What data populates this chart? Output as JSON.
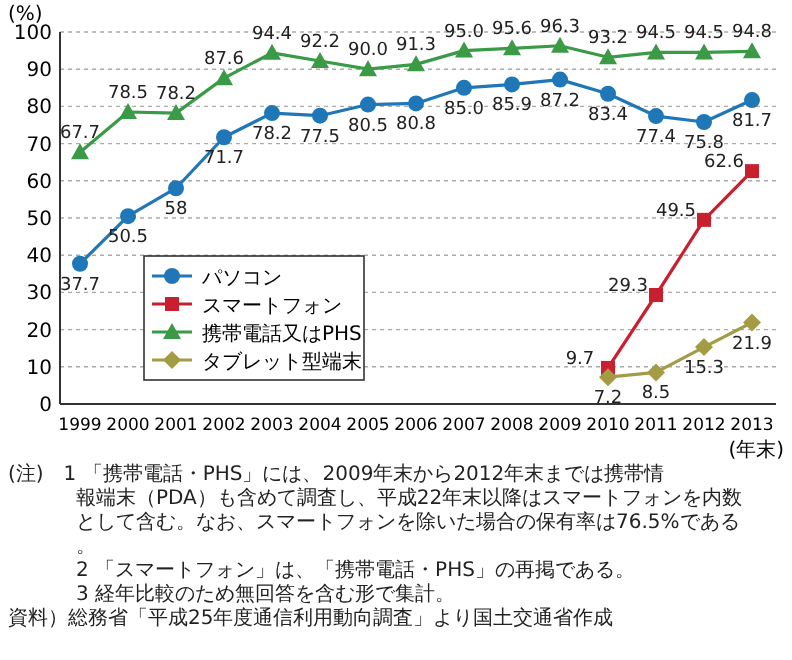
{
  "chart_data": {
    "type": "line",
    "ylabel": "(%)",
    "xlabel": "(年末)",
    "categories": [
      "1999",
      "2000",
      "2001",
      "2002",
      "2003",
      "2004",
      "2005",
      "2006",
      "2007",
      "2008",
      "2009",
      "2010",
      "2011",
      "2012",
      "2013"
    ],
    "ylim": [
      0,
      100
    ],
    "yticks": [
      0,
      10,
      20,
      30,
      40,
      50,
      60,
      70,
      80,
      90,
      100
    ],
    "grid": "y",
    "legend": "left",
    "series": [
      {
        "name": "パソコン",
        "color": "#1f77b8",
        "marker": "circle",
        "values": [
          37.7,
          50.5,
          58,
          71.7,
          78.2,
          77.5,
          80.5,
          80.8,
          85.0,
          85.9,
          87.2,
          83.4,
          77.4,
          75.8,
          81.7
        ],
        "value_labels": [
          "37.7",
          "50.5",
          "58",
          "71.7",
          "78.2",
          "77.5",
          "80.5",
          "80.8",
          "85.0",
          "85.9",
          "87.2",
          "83.4",
          "77.4",
          "75.8",
          "81.7"
        ]
      },
      {
        "name": "スマートフォン",
        "color": "#c8202f",
        "marker": "square",
        "values": [
          null,
          null,
          null,
          null,
          null,
          null,
          null,
          null,
          null,
          null,
          null,
          9.7,
          29.3,
          49.5,
          62.6
        ],
        "value_labels": [
          null,
          null,
          null,
          null,
          null,
          null,
          null,
          null,
          null,
          null,
          null,
          "9.7",
          "29.3",
          "49.5",
          "62.6"
        ]
      },
      {
        "name": "携帯電話又はPHS",
        "color": "#3a9a46",
        "marker": "triangle",
        "values": [
          67.7,
          78.5,
          78.2,
          87.6,
          94.4,
          92.2,
          90.0,
          91.3,
          95.0,
          95.6,
          96.3,
          93.2,
          94.5,
          94.5,
          94.8
        ],
        "value_labels": [
          "67.7",
          "78.5",
          "78.2",
          "87.6",
          "94.4",
          "92.2",
          "90.0",
          "91.3",
          "95.0",
          "95.6",
          "96.3",
          "93.2",
          "94.5",
          "94.5",
          "94.8"
        ]
      },
      {
        "name": "タブレット型端末",
        "color": "#a39c45",
        "marker": "diamond",
        "values": [
          null,
          null,
          null,
          null,
          null,
          null,
          null,
          null,
          null,
          null,
          null,
          7.2,
          8.5,
          15.3,
          21.9
        ],
        "value_labels": [
          null,
          null,
          null,
          null,
          null,
          null,
          null,
          null,
          null,
          null,
          null,
          "7.2",
          "8.5",
          "15.3",
          "21.9"
        ]
      }
    ],
    "annotations": [
      "(注)　1 「携帯電話・PHS」には、2009年末から2012年末までは携帯情報端末（PDA）も含めて調査し、平成22年末以降はスマートフォンを内数として含む。なお、スマートフォンを除いた場合の保有率は76.5%である。",
      "2 「スマートフォン」は、「携帯電話・PHS」の再掲である。",
      "3 経年比較のため無回答を含む形で集計。",
      "資料）総務省「平成25年度通信利用動向調査」より国土交通省作成"
    ]
  }
}
